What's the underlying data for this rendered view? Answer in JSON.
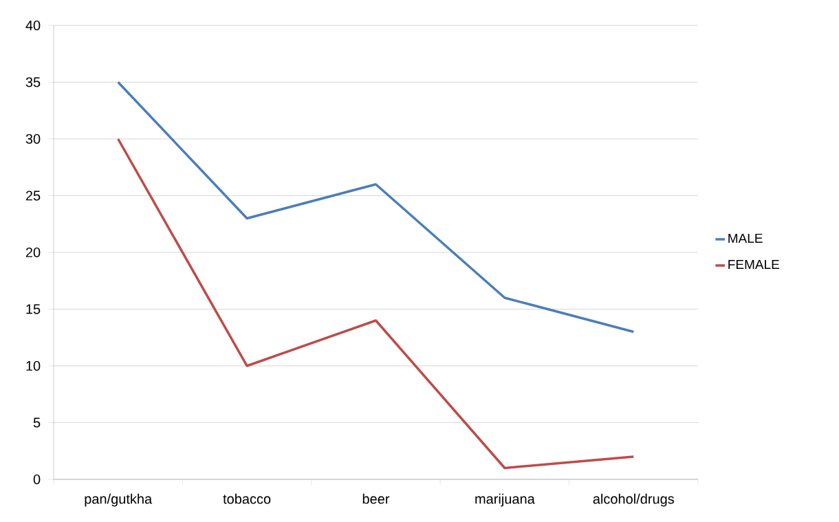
{
  "chart_data": {
    "type": "line",
    "categories": [
      "pan/gutkha",
      "tobacco",
      "beer",
      "marijuana",
      "alcohol/drugs"
    ],
    "series": [
      {
        "name": "MALE",
        "color": "#4a7ebb",
        "values": [
          35,
          23,
          26,
          16,
          13
        ]
      },
      {
        "name": "FEMALE",
        "color": "#be4b48",
        "values": [
          30,
          10,
          14,
          1,
          2
        ]
      }
    ],
    "ylim": [
      0,
      40
    ],
    "yticks": [
      0,
      5,
      10,
      15,
      20,
      25,
      30,
      35,
      40
    ],
    "grid": "y",
    "legend": "right",
    "marker": "none",
    "line_style": "solid"
  }
}
